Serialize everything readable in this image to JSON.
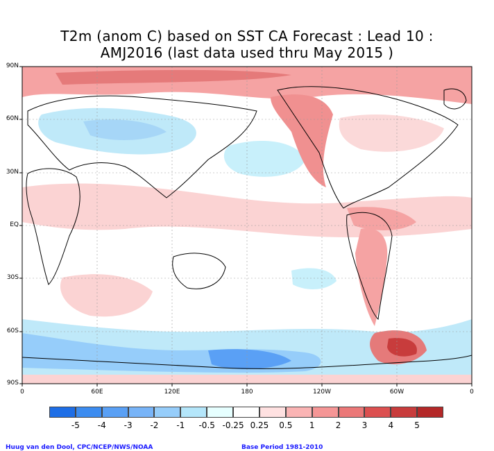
{
  "title": {
    "line1": "T2m (anom C) based on SST CA Forecast : Lead 10 :",
    "line2": "AMJ2016 (last data used thru May 2015 )"
  },
  "axes": {
    "lat_labels": [
      "90N",
      "60N",
      "30N",
      "EQ",
      "30S",
      "60S",
      "90S"
    ],
    "lon_labels": [
      "0",
      "60E",
      "120E",
      "180",
      "120W",
      "60W",
      "0"
    ]
  },
  "legend": {
    "labels": [
      "-5",
      "-4",
      "-3",
      "-2",
      "-1",
      "-0.5",
      "-0.25",
      "0.25",
      "0.5",
      "1",
      "2",
      "3",
      "4",
      "5"
    ],
    "colors": [
      "#1e6ee6",
      "#3c8cf0",
      "#5aa0f5",
      "#78b4f8",
      "#96cdfa",
      "#b4e6fa",
      "#e6ffff",
      "#ffffff",
      "#ffe1e1",
      "#fab4b4",
      "#f59696",
      "#eb7878",
      "#dc5050",
      "#c83c3c",
      "#b42828"
    ]
  },
  "credits": {
    "left": "Huug van den Dool, CPC/NCEP/NWS/NOAA",
    "right": "Base Period 1981-2010"
  },
  "chart_data": {
    "type": "heatmap",
    "variable": "T2m (anom C)",
    "scale": [
      "-5",
      "-4",
      "-3",
      "-2",
      "-1",
      "-0.5",
      "-0.25",
      "0.25",
      "0.5",
      "1",
      "2",
      "3",
      "4",
      "5"
    ],
    "regions": [
      {
        "area": "Arctic Ocean",
        "anomaly_class": "0.5 to 2"
      },
      {
        "area": "Northern Eurasia",
        "anomaly_class": "-0.5 to -1"
      },
      {
        "area": "Western North America / Alaska",
        "anomaly_class": "1 to 3"
      },
      {
        "area": "North Pacific",
        "anomaly_class": "-0.25 to -1"
      },
      {
        "area": "Tropical belt",
        "anomaly_class": "0.25 to 1"
      },
      {
        "area": "Southern Ocean",
        "anomaly_class": "-1 to -4"
      },
      {
        "area": "Antarctica (west)",
        "anomaly_class": "1 to 4"
      }
    ],
    "grid": true
  }
}
